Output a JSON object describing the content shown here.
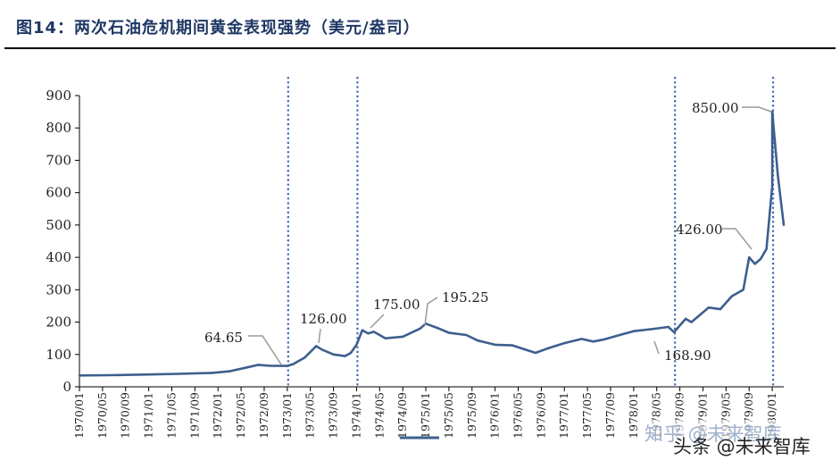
{
  "title": "图14：两次石油危机期间黄金表现强势（美元/盎司）",
  "watermark": {
    "zhihu": "知乎 @未来智库",
    "toutiao": "头条 @未来智库"
  },
  "chart_data": {
    "type": "line",
    "title": "图14：两次石油危机期间黄金表现强势（美元/盎司）",
    "xlabel": "",
    "ylabel": "",
    "ylim": [
      0,
      900
    ],
    "yticks": [
      0,
      100,
      200,
      300,
      400,
      500,
      600,
      700,
      800,
      900
    ],
    "xlim": [
      "1970/01",
      "1980/03"
    ],
    "xticks": [
      "1970/01",
      "1970/05",
      "1970/09",
      "1971/01",
      "1971/05",
      "1971/09",
      "1972/01",
      "1972/05",
      "1972/09",
      "1973/01",
      "1973/05",
      "1973/09",
      "1974/01",
      "1974/05",
      "1974/09",
      "1975/01",
      "1975/05",
      "1975/09",
      "1976/01",
      "1976/05",
      "1976/09",
      "1977/01",
      "1977/05",
      "1977/09",
      "1978/01",
      "1978/05",
      "1978/09",
      "1979/01",
      "1979/05",
      "1979/09",
      "1980/01"
    ],
    "grid": false,
    "legend": "bottom",
    "legend_entries": [
      ""
    ],
    "series": [
      {
        "name": "",
        "color": "#3d5f8f",
        "x": [
          "1970/01",
          "1970/06",
          "1971/01",
          "1971/06",
          "1971/12",
          "1972/03",
          "1972/06",
          "1972/08",
          "1972/10",
          "1973/01",
          "1973/02",
          "1973/04",
          "1973/06",
          "1973/07",
          "1973/09",
          "1973/11",
          "1973/12",
          "1974/01",
          "1974/02",
          "1974/03",
          "1974/04",
          "1974/06",
          "1974/09",
          "1974/12",
          "1975/01",
          "1975/03",
          "1975/05",
          "1975/08",
          "1975/10",
          "1976/01",
          "1976/04",
          "1976/08",
          "1976/10",
          "1977/01",
          "1977/04",
          "1977/06",
          "1977/08",
          "1977/11",
          "1978/01",
          "1978/04",
          "1978/07",
          "1978/08",
          "1978/10",
          "1978/11",
          "1978/12",
          "1979/02",
          "1979/04",
          "1979/06",
          "1979/08",
          "1979/09",
          "1979/10",
          "1979/11",
          "1979/12",
          "1980/01",
          "1980/01",
          "1980/02",
          "1980/03"
        ],
        "y": [
          35,
          36,
          38,
          40,
          43,
          48,
          60,
          68,
          65,
          64.65,
          70,
          90,
          126,
          115,
          100,
          95,
          105,
          130,
          175,
          165,
          170,
          150,
          155,
          180,
          195.25,
          182,
          167,
          160,
          143,
          130,
          128,
          105,
          118,
          135,
          148,
          140,
          147,
          162,
          172,
          178,
          185,
          168.9,
          210,
          200,
          215,
          245,
          240,
          280,
          300,
          400,
          380,
          395,
          426,
          620,
          850,
          650,
          500
        ]
      }
    ],
    "markers": [
      "1973/01",
      "1974/01",
      "1978/08",
      "1980/01"
    ],
    "annotations": [
      {
        "label": "64.65",
        "x": "1973/01",
        "y": 64.65
      },
      {
        "label": "126.00",
        "x": "1973/06",
        "y": 126
      },
      {
        "label": "175.00",
        "x": "1974/02",
        "y": 175
      },
      {
        "label": "195.25",
        "x": "1975/01",
        "y": 195.25
      },
      {
        "label": "168.90",
        "x": "1978/08",
        "y": 168.9
      },
      {
        "label": "426.00",
        "x": "1979/12",
        "y": 426
      },
      {
        "label": "850.00",
        "x": "1980/01",
        "y": 850
      }
    ]
  }
}
